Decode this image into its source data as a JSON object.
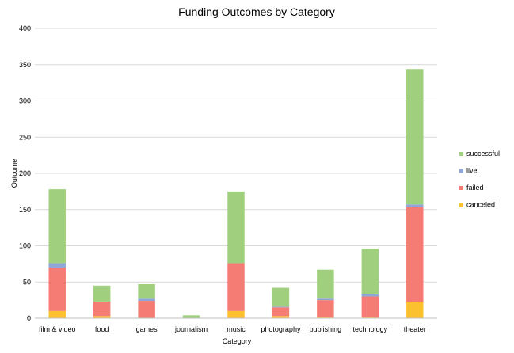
{
  "chart_data": {
    "type": "bar",
    "stacked": true,
    "title": "Funding Outcomes by Category",
    "xlabel": "Category",
    "ylabel": "Outcome",
    "ylim": [
      0,
      400
    ],
    "yticks": [
      0,
      50,
      100,
      150,
      200,
      250,
      300,
      350,
      400
    ],
    "grid": true,
    "legend_position": "right",
    "categories": [
      "film & video",
      "food",
      "games",
      "journalism",
      "music",
      "photography",
      "publishing",
      "technology",
      "theater"
    ],
    "series": [
      {
        "name": "canceled",
        "color": "#FCC12E",
        "values": [
          10,
          3,
          0,
          0,
          10,
          3,
          1,
          1,
          22
        ]
      },
      {
        "name": "failed",
        "color": "#F57C74",
        "values": [
          60,
          20,
          24,
          0,
          66,
          12,
          24,
          29,
          132
        ]
      },
      {
        "name": "live",
        "color": "#8FA6D6",
        "values": [
          6,
          0,
          3,
          0,
          0,
          1,
          2,
          3,
          3
        ]
      },
      {
        "name": "successful",
        "color": "#A0D07E",
        "values": [
          102,
          22,
          20,
          4,
          99,
          26,
          40,
          63,
          187
        ]
      }
    ],
    "legend_order": [
      "successful",
      "live",
      "failed",
      "canceled"
    ]
  }
}
